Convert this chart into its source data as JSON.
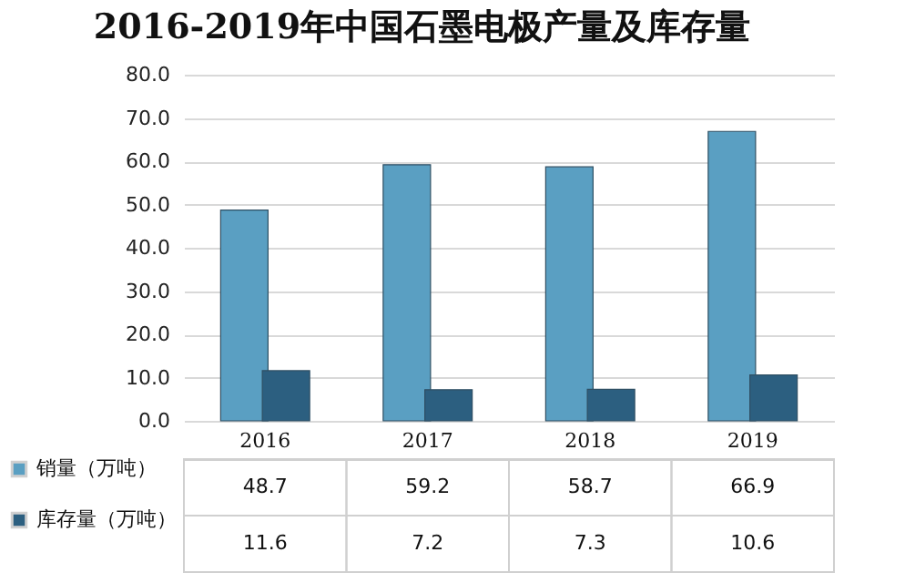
{
  "chart_data": {
    "type": "bar",
    "title": "2016-2019年中国石墨电极产量及库存量",
    "categories": [
      "2016",
      "2017",
      "2018",
      "2019"
    ],
    "series": [
      {
        "name": "销量（万吨）",
        "color": "#5a9fc2",
        "values": [
          48.7,
          59.2,
          58.7,
          66.9
        ]
      },
      {
        "name": "库存量（万吨）",
        "color": "#2c5f80",
        "values": [
          11.6,
          7.2,
          7.3,
          10.6
        ]
      }
    ],
    "ylim": [
      0,
      80
    ],
    "yticks": [
      {
        "value": 0,
        "label": "0.0"
      },
      {
        "value": 10,
        "label": "10.0"
      },
      {
        "value": 20,
        "label": "20.0"
      },
      {
        "value": 30,
        "label": "30.0"
      },
      {
        "value": 40,
        "label": "40.0"
      },
      {
        "value": 50,
        "label": "50.0"
      },
      {
        "value": 60,
        "label": "60.0"
      },
      {
        "value": 70,
        "label": "70.0"
      },
      {
        "value": 80,
        "label": "80.0"
      }
    ],
    "grid": "y",
    "data_labels": true,
    "legend": "bottom left"
  }
}
